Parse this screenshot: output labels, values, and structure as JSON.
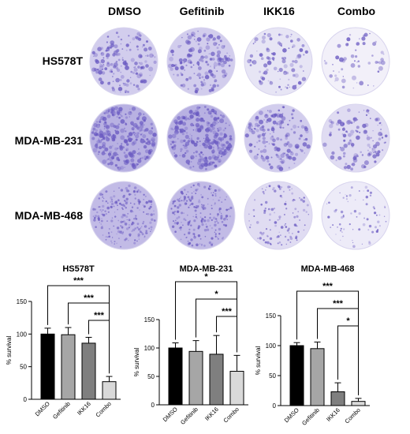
{
  "columns": [
    "DMSO",
    "Gefitinib",
    "IKK16",
    "Combo"
  ],
  "rows": [
    "HS578T",
    "MDA-MB-231",
    "MDA-MB-468"
  ],
  "colors": {
    "dmso": "#000000",
    "gefitinib": "#a6a6a6",
    "ikk16": "#7f7f7f",
    "combo": "#d9d9d9",
    "stain": "#6b5bc2"
  },
  "colony_intensity": [
    [
      0.55,
      0.55,
      0.25,
      0.08
    ],
    [
      0.95,
      0.95,
      0.55,
      0.35
    ],
    [
      0.8,
      0.8,
      0.35,
      0.15
    ]
  ],
  "chart_data": [
    {
      "type": "bar",
      "title": "HS578T",
      "ylabel": "% survival",
      "categories": [
        "DMSO",
        "Gefitinib",
        "IKK16",
        "Combo"
      ],
      "values": [
        100,
        99,
        86,
        27
      ],
      "errors": [
        9,
        11,
        9,
        8
      ],
      "ylim": [
        0,
        150
      ],
      "yticks": [
        "0",
        "50",
        "100",
        "150"
      ],
      "significance": [
        {
          "from": "DMSO",
          "to": "Combo",
          "label": "***"
        },
        {
          "from": "Gefitinib",
          "to": "Combo",
          "label": "***"
        },
        {
          "from": "IKK16",
          "to": "Combo",
          "label": "***"
        }
      ]
    },
    {
      "type": "bar",
      "title": "MDA-MB-231",
      "ylabel": "% survival",
      "categories": [
        "DMSO",
        "Gefitinib",
        "IKK16",
        "Combo"
      ],
      "values": [
        100,
        94,
        89,
        59
      ],
      "errors": [
        9,
        19,
        33,
        28
      ],
      "ylim": [
        0,
        150
      ],
      "yticks": [
        "0",
        "50",
        "100",
        "150"
      ],
      "significance": [
        {
          "from": "DMSO",
          "to": "Combo",
          "label": "*"
        },
        {
          "from": "Gefitinib",
          "to": "Combo",
          "label": "*"
        },
        {
          "from": "IKK16",
          "to": "Combo",
          "label": "***"
        }
      ]
    },
    {
      "type": "bar",
      "title": "MDA-MB-468",
      "ylabel": "% survival",
      "categories": [
        "DMSO",
        "Gefitinib",
        "IKK16",
        "Combo"
      ],
      "values": [
        100,
        95,
        23,
        7
      ],
      "errors": [
        5,
        11,
        15,
        5
      ],
      "ylim": [
        0,
        150
      ],
      "yticks": [
        "0",
        "50",
        "100",
        "150"
      ],
      "significance": [
        {
          "from": "DMSO",
          "to": "Combo",
          "label": "***"
        },
        {
          "from": "Gefitinib",
          "to": "Combo",
          "label": "***"
        },
        {
          "from": "IKK16",
          "to": "Combo",
          "label": "*"
        }
      ]
    }
  ]
}
